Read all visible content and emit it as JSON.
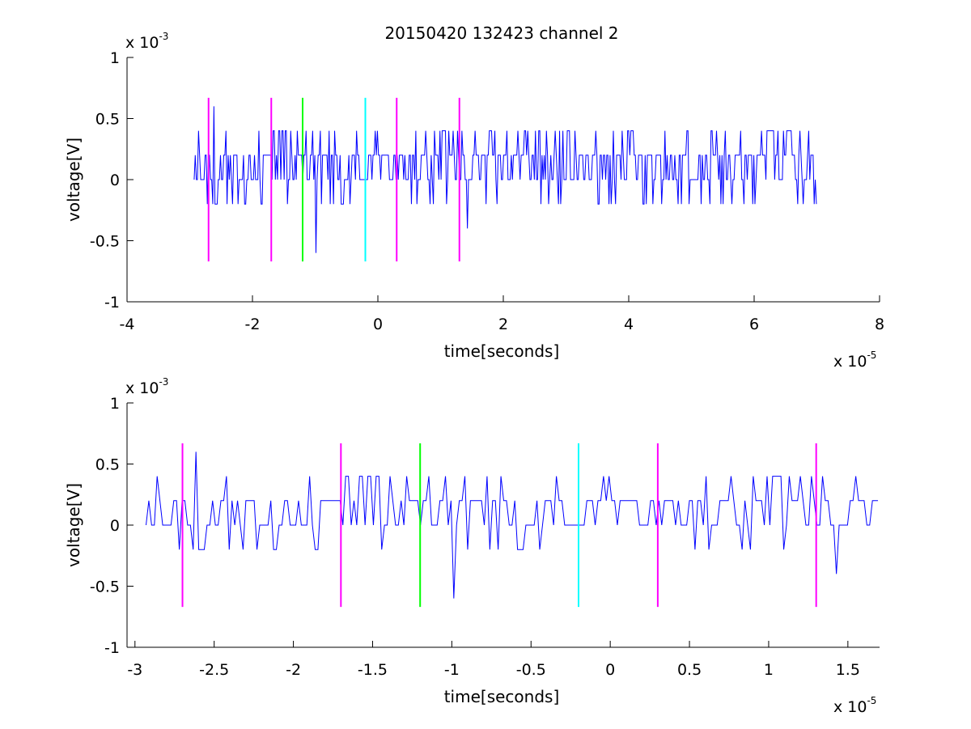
{
  "title": "20150420 132423 channel 2",
  "colors": {
    "signal": "#0000ff",
    "magenta": "#ff00ff",
    "green": "#00ff00",
    "cyan": "#00ffff",
    "axes": "#000000",
    "background": "#ffffff"
  },
  "chart_data": [
    {
      "type": "line",
      "title": "20150420 132423 channel 2",
      "xlabel": "time[seconds]",
      "ylabel": "voltage[V]",
      "xlim": [
        -4,
        8
      ],
      "ylim": [
        -1,
        1
      ],
      "x_multiplier": "x 10",
      "x_exponent": "-5",
      "y_multiplier": "x 10",
      "y_exponent": "-3",
      "x_ticks": [
        -4,
        -2,
        0,
        2,
        4,
        6,
        8
      ],
      "x_tick_labels": [
        "-4",
        "-2",
        "0",
        "2",
        "4",
        "6",
        "8"
      ],
      "y_ticks": [
        -1,
        -0.5,
        0,
        0.5,
        1
      ],
      "y_tick_labels": [
        "-1",
        "-0.5",
        "0",
        "0.5",
        "1"
      ],
      "grid": false,
      "signal_range": [
        -2.93,
        7.0
      ],
      "series_color": "#0000ff",
      "markers": [
        {
          "x": -2.7,
          "ymin": -0.67,
          "ymax": 0.67,
          "color": "#ff00ff"
        },
        {
          "x": -1.7,
          "ymin": -0.67,
          "ymax": 0.67,
          "color": "#ff00ff"
        },
        {
          "x": -1.2,
          "ymin": -0.67,
          "ymax": 0.67,
          "color": "#00ff00"
        },
        {
          "x": -0.2,
          "ymin": -0.67,
          "ymax": 0.67,
          "color": "#00ffff"
        },
        {
          "x": 0.3,
          "ymin": -0.67,
          "ymax": 0.67,
          "color": "#ff00ff"
        },
        {
          "x": 1.3,
          "ymin": -0.67,
          "ymax": 0.67,
          "color": "#ff00ff"
        }
      ]
    },
    {
      "type": "line",
      "xlabel": "time[seconds]",
      "ylabel": "voltage[V]",
      "xlim": [
        -3.05,
        1.7
      ],
      "ylim": [
        -1,
        1
      ],
      "x_multiplier": "x 10",
      "x_exponent": "-5",
      "y_multiplier": "x 10",
      "y_exponent": "-3",
      "x_ticks": [
        -3,
        -2.5,
        -2,
        -1.5,
        -1,
        -0.5,
        0,
        0.5,
        1,
        1.5
      ],
      "x_tick_labels": [
        "-3",
        "-2.5",
        "-2",
        "-1.5",
        "-1",
        "-0.5",
        "0",
        "0.5",
        "1",
        "1.5"
      ],
      "y_ticks": [
        -1,
        -0.5,
        0,
        0.5,
        1
      ],
      "y_tick_labels": [
        "-1",
        "-0.5",
        "0",
        "0.5",
        "1"
      ],
      "grid": false,
      "signal_range": [
        -2.93,
        1.7
      ],
      "series_color": "#0000ff",
      "markers": [
        {
          "x": -2.7,
          "ymin": -0.67,
          "ymax": 0.67,
          "color": "#ff00ff"
        },
        {
          "x": -1.7,
          "ymin": -0.67,
          "ymax": 0.67,
          "color": "#ff00ff"
        },
        {
          "x": -1.2,
          "ymin": -0.67,
          "ymax": 0.67,
          "color": "#00ff00"
        },
        {
          "x": -0.2,
          "ymin": -0.67,
          "ymax": 0.67,
          "color": "#00ffff"
        },
        {
          "x": 0.3,
          "ymin": -0.67,
          "ymax": 0.67,
          "color": "#ff00ff"
        },
        {
          "x": 1.3,
          "ymin": -0.67,
          "ymax": 0.67,
          "color": "#ff00ff"
        }
      ]
    }
  ]
}
